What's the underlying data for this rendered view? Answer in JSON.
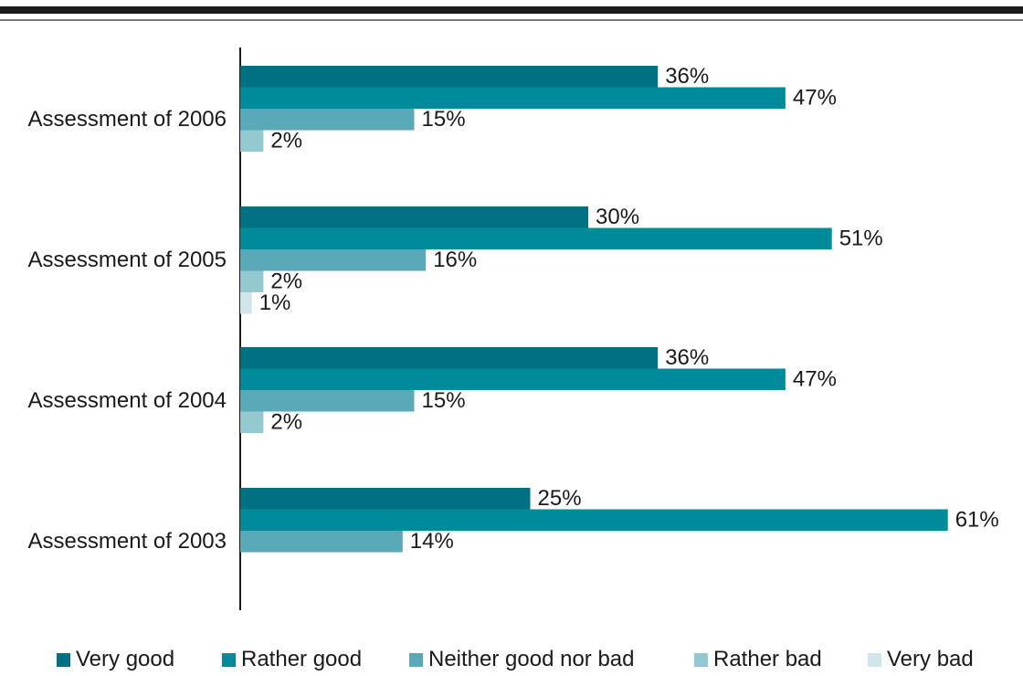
{
  "chart_data": {
    "type": "bar",
    "orientation": "horizontal",
    "title": "",
    "categories": [
      "Assessment of 2006",
      "Assessment of 2005",
      "Assessment of 2004",
      "Assessment of 2003"
    ],
    "series": [
      {
        "name": "Very good",
        "color": "#007182",
        "values": [
          36,
          30,
          36,
          25
        ]
      },
      {
        "name": "Rather good",
        "color": "#008b9b",
        "values": [
          47,
          51,
          47,
          61
        ]
      },
      {
        "name": "Neither good nor bad",
        "color": "#5aa9b7",
        "values": [
          15,
          16,
          15,
          14
        ]
      },
      {
        "name": "Rather bad",
        "color": "#94c8d0",
        "values": [
          2,
          2,
          2,
          null
        ]
      },
      {
        "name": "Very bad",
        "color": "#cfe6ea",
        "values": [
          null,
          1,
          null,
          null
        ]
      }
    ],
    "value_suffix": "%",
    "xlim": [
      0,
      61
    ],
    "grid": false,
    "legend_position": "bottom"
  }
}
